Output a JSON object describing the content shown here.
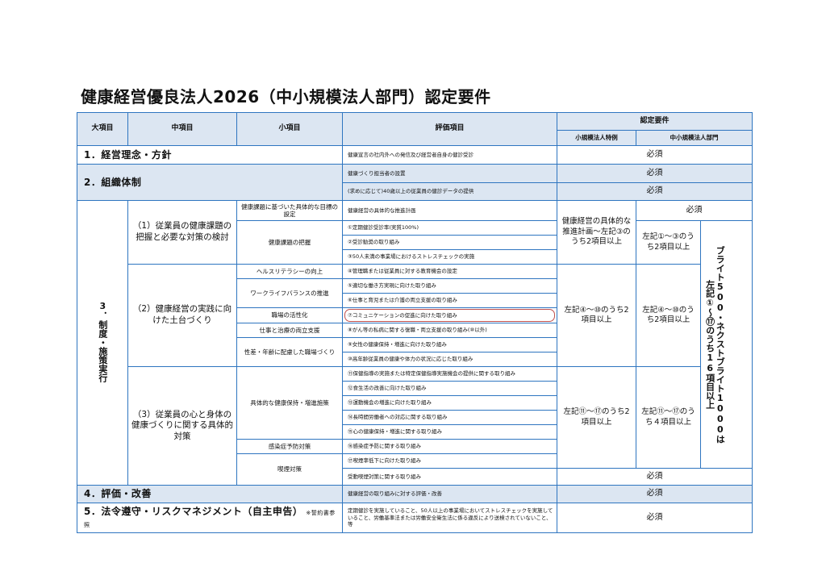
{
  "title": "健康経営優良法人2026（中小規模法人部門）認定要件",
  "header": {
    "large": "大項目",
    "middle": "中項目",
    "small": "小項目",
    "evaluation": "評価項目",
    "requirements": "認定要件",
    "small_corp": "小規模法人特例",
    "sme": "中小規模法人部門"
  },
  "required": "必須",
  "sections": {
    "s1": {
      "label": "1．経営理念・方針",
      "items": [
        "健康宣言の社内外への発信及び経営者自身の健診受診"
      ]
    },
    "s2": {
      "label": "2．組織体制",
      "items": [
        "健康づくり担当者の設置",
        "(求めに応じて)40歳以上の従業員の健診データの提供"
      ]
    },
    "s3": {
      "label": "3．制度・施策実行",
      "middle": [
        "（1）従業員の健康課題の把握と必要な対策の検討",
        "（2）健康経営の実践に向けた土台づくり",
        "（3）従業員の心と身体の健康づくりに関する具体的対策"
      ],
      "small": [
        "健康課題に基づいた具体的な目標の設定",
        "健康課題の把握",
        "ヘルスリテラシーの向上",
        "ワークライフバランスの推進",
        "職場の活性化",
        "仕事と治療の両立支援",
        "性差・年齢に配慮した職場づくり",
        "具体的な健康保持・増進施策",
        "感染症予防対策",
        "喫煙対策"
      ],
      "items": [
        "健康経営の具体的な推進計画",
        "①定期健診受診率(実質100%)",
        "②受診勧奨の取り組み",
        "③50人未満の事業場におけるストレスチェックの実施",
        "④管理職または従業員に対する教育機会の設定",
        "⑤適切な働き方実現に向けた取り組み",
        "⑥仕事と育児または介護の両立支援の取り組み",
        "⑦コミュニケーションの促進に向けた取り組み",
        "⑧がん等の私病に関する復職・両立支援の取り組み(⑩以外)",
        "⑨女性の健康保持・増進に向けた取り組み",
        "⑩高年齢従業員の健康や体力の状況に応じた取り組み",
        "⑪保健指導の実施または特定保健指導実施機会の提供に関する取り組み",
        "⑫食生活の改善に向けた取り組み",
        "⑬運動機会の増進に向けた取り組み",
        "⑭長時間労働者への対応に関する取り組み",
        "⑮心の健康保持・増進に関する取り組み",
        "⑯感染症予防に関する取り組み",
        "⑰喫煙率低下に向けた取り組み",
        "受動喫煙対策に関する取り組み"
      ],
      "highlighted_item": "⑦コミュニケーションの促進に向けた取り組み",
      "req_small_1": "健康経営の具体的な推進計画～左記③のうち2項目以上",
      "req_sme_1": "左記①～③のうち2項目以上",
      "req_small_2": "左記④～⑩のうち2項目以上",
      "req_sme_2": "左記④～⑩のうち2項目以上",
      "req_small_3": "左記⑪～⑰のうち2項目以上",
      "req_sme_3": "左記⑪～⑰のうち４項目以上",
      "bright_line1": "ブライト500・ネクストブライト1000は",
      "bright_line2": "左記①～⑰のうち16項目以上"
    },
    "s4": {
      "label": "4．評価・改善",
      "items": [
        "健康経営の取り組みに対する評価・改善"
      ]
    },
    "s5": {
      "label": "5．法令遵守・リスクマネジメント（自主申告）",
      "note": "※誓約書参照",
      "items": [
        "定期健診を実施していること、50人以上の事業場においてストレスチェックを実施していること、労働基準法または労働安全衛生法に係る違反により送検されていないこと、等"
      ]
    }
  },
  "colors": {
    "border": "#2e75c0",
    "header_bg": "#dce6f2",
    "highlight": "#c0504d"
  }
}
